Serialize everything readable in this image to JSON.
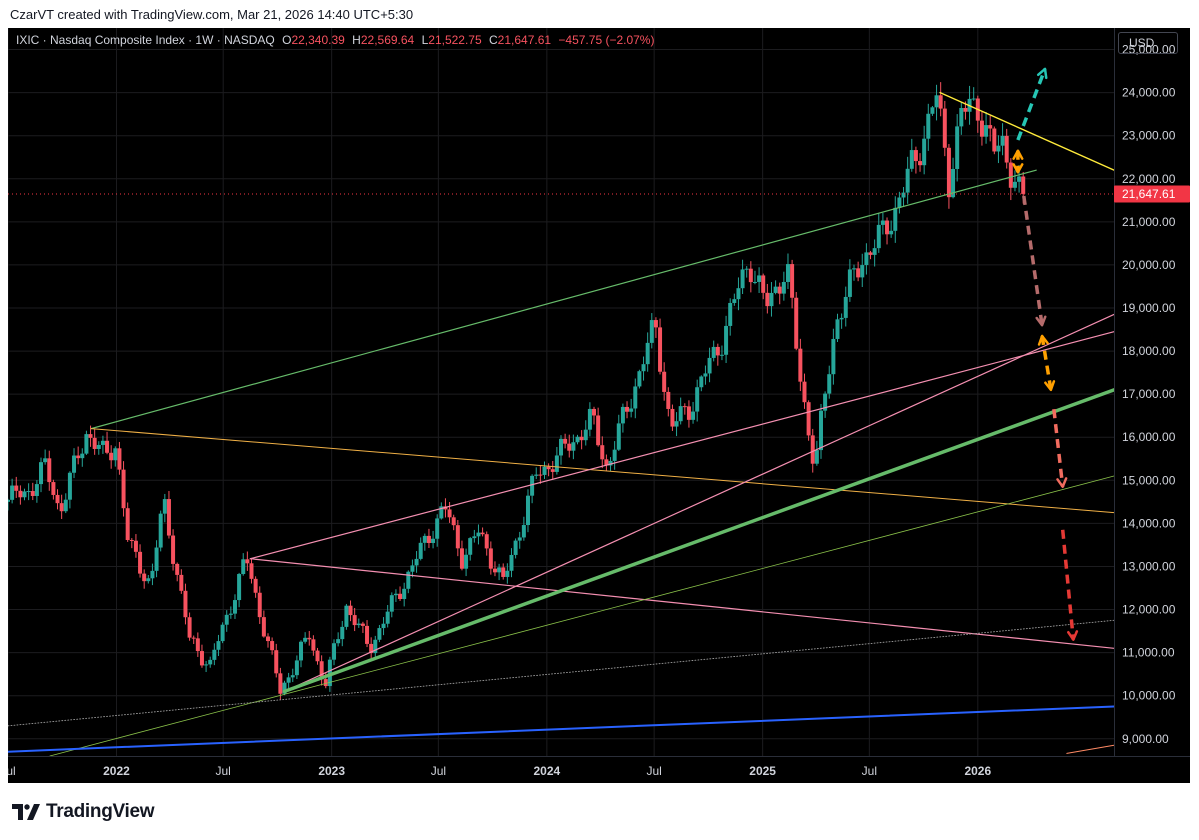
{
  "credit": "CzarVT created with TradingView.com, Mar 21, 2026 14:40 UTC+5:30",
  "legend": {
    "symbol": "IXIC · Nasdaq Composite Index · 1W · NASDAQ",
    "o_label": "O",
    "o_value": "22,340.39",
    "h_label": "H",
    "h_value": "22,569.64",
    "l_label": "L",
    "l_value": "21,522.75",
    "c_label": "C",
    "c_value": "21,647.61",
    "change": "−457.75 (−2.07%)"
  },
  "currency_button": "USD",
  "last_price_label": "21,647.61",
  "brand": "TradingView",
  "colors": {
    "background": "#000000",
    "up": "#26a69a",
    "down": "#f7525f",
    "last_price": "#f23645",
    "channel_green": "#66bb6a",
    "pink": "#f48fb1",
    "orange": "#f0b046",
    "yellow": "#ffeb3b",
    "blue": "#2962ff"
  },
  "chart_data": {
    "type": "candlestick",
    "timeframe": "1W",
    "ylim": [
      8600,
      25500
    ],
    "y_ticks": [
      9000,
      10000,
      11000,
      12000,
      13000,
      14000,
      15000,
      16000,
      17000,
      18000,
      19000,
      20000,
      21000,
      22000,
      23000,
      24000,
      25000
    ],
    "y_tick_labels": [
      "9,000.00",
      "10,000.00",
      "11,000.00",
      "12,000.00",
      "13,000.00",
      "14,000.00",
      "15,000.00",
      "16,000.00",
      "17,000.00",
      "18,000.00",
      "19,000.00",
      "20,000.00",
      "21,000.00",
      "22,000.00",
      "23,000.00",
      "24,000.00",
      "25,000.00"
    ],
    "x_range": [
      "2021-07-01",
      "2026-08-20"
    ],
    "x_ticks": [
      {
        "date": "2021-07-01",
        "label": "Jul"
      },
      {
        "date": "2022-01-01",
        "label": "2022"
      },
      {
        "date": "2022-07-01",
        "label": "Jul"
      },
      {
        "date": "2023-01-01",
        "label": "2023"
      },
      {
        "date": "2023-07-01",
        "label": "Jul"
      },
      {
        "date": "2024-01-01",
        "label": "2024"
      },
      {
        "date": "2024-07-01",
        "label": "Jul"
      },
      {
        "date": "2025-01-01",
        "label": "2025"
      },
      {
        "date": "2025-07-01",
        "label": "Jul"
      },
      {
        "date": "2026-01-01",
        "label": "2026"
      }
    ],
    "path_points": [
      [
        "2021-07-01",
        14500
      ],
      [
        "2021-08-15",
        14800
      ],
      [
        "2021-09-10",
        15300
      ],
      [
        "2021-10-04",
        14300
      ],
      [
        "2021-11-19",
        16150
      ],
      [
        "2021-12-20",
        15500
      ],
      [
        "2022-01-07",
        15900
      ],
      [
        "2022-01-28",
        13500
      ],
      [
        "2022-03-07",
        12600
      ],
      [
        "2022-03-29",
        14500
      ],
      [
        "2022-05-12",
        11300
      ],
      [
        "2022-06-16",
        10700
      ],
      [
        "2022-08-16",
        13180
      ],
      [
        "2022-10-13",
        10100
      ],
      [
        "2022-12-01",
        11400
      ],
      [
        "2022-12-28",
        10250
      ],
      [
        "2023-02-02",
        12100
      ],
      [
        "2023-03-13",
        11100
      ],
      [
        "2023-04-20",
        12100
      ],
      [
        "2023-07-18",
        14400
      ],
      [
        "2023-08-18",
        13200
      ],
      [
        "2023-09-15",
        13800
      ],
      [
        "2023-10-26",
        12600
      ],
      [
        "2023-12-20",
        15100
      ],
      [
        "2024-01-30",
        15600
      ],
      [
        "2024-03-25",
        16400
      ],
      [
        "2024-04-19",
        15300
      ],
      [
        "2024-07-10",
        18600
      ],
      [
        "2024-08-05",
        16200
      ],
      [
        "2024-09-06",
        16700
      ],
      [
        "2024-10-31",
        18300
      ],
      [
        "2024-12-16",
        20150
      ],
      [
        "2025-01-13",
        19000
      ],
      [
        "2025-02-18",
        20000
      ],
      [
        "2025-03-10",
        17600
      ],
      [
        "2025-04-07",
        15300
      ],
      [
        "2025-05-12",
        18700
      ],
      [
        "2025-06-27",
        20200
      ],
      [
        "2025-08-01",
        20700
      ],
      [
        "2025-09-26",
        22500
      ],
      [
        "2025-10-29",
        23950
      ],
      [
        "2025-11-20",
        22000
      ],
      [
        "2025-12-10",
        23500
      ],
      [
        "2026-01-08",
        23700
      ],
      [
        "2026-02-05",
        22600
      ],
      [
        "2026-02-20",
        22800
      ],
      [
        "2026-03-20",
        21647.61
      ]
    ],
    "trendlines": [
      {
        "color": "#66bb6a",
        "width": 1.2,
        "p1": [
          "2021-11-19",
          16200
        ],
        "p2": [
          "2026-04-10",
          22200
        ]
      },
      {
        "color": "#f0b046",
        "width": 1.0,
        "p1": [
          "2021-11-19",
          16200
        ],
        "p2": [
          "2026-08-20",
          14250
        ]
      },
      {
        "color": "#ffeb3b",
        "width": 1.4,
        "p1": [
          "2025-10-29",
          24000
        ],
        "p2": [
          "2026-08-20",
          22200
        ]
      },
      {
        "color": "#f48fb1",
        "width": 1.2,
        "p1": [
          "2022-08-16",
          13180
        ],
        "p2": [
          "2026-08-20",
          18450
        ]
      },
      {
        "color": "#f48fb1",
        "width": 1.2,
        "p1": [
          "2022-08-16",
          13180
        ],
        "p2": [
          "2026-08-20",
          11100
        ]
      },
      {
        "color": "#f48fb1",
        "width": 1.2,
        "p1": [
          "2022-10-13",
          10100
        ],
        "p2": [
          "2026-08-20",
          18850
        ]
      },
      {
        "color": "#66bb6a",
        "width": 3.5,
        "p1": [
          "2022-10-13",
          10100
        ],
        "p2": [
          "2026-08-20",
          17100
        ]
      },
      {
        "color": "#8bc34a",
        "width": 0.8,
        "p1": [
          "2021-09-10",
          8600
        ],
        "p2": [
          "2026-08-20",
          15100
        ]
      },
      {
        "color": "#9e9e9e",
        "width": 0.9,
        "dash": "1,2",
        "p1": [
          "2021-07-01",
          9300
        ],
        "p2": [
          "2026-08-20",
          11750
        ]
      },
      {
        "color": "#2962ff",
        "width": 2.0,
        "p1": [
          "2021-07-01",
          8700
        ],
        "p2": [
          "2026-08-20",
          9750
        ]
      },
      {
        "color": "#ff8a65",
        "width": 1.0,
        "p1": [
          "2026-06-01",
          8660
        ],
        "p2": [
          "2026-08-20",
          8850
        ]
      }
    ],
    "projection_arrows": [
      {
        "color": "#26c6b5",
        "p1": [
          "2026-03-10",
          22900
        ],
        "p2": [
          "2026-04-25",
          24550
        ]
      },
      {
        "color": "#ffa000",
        "p1": [
          "2026-03-10",
          22650
        ],
        "p2": [
          "2026-03-10",
          22150
        ],
        "double": true
      },
      {
        "color": "#b56b6b",
        "p1": [
          "2026-03-20",
          21600
        ],
        "p2": [
          "2026-04-20",
          18600
        ]
      },
      {
        "color": "#ffa000",
        "p1": [
          "2026-04-20",
          18350
        ],
        "p2": [
          "2026-05-05",
          17100
        ],
        "double": true
      },
      {
        "color": "#f26c5f",
        "p1": [
          "2026-05-10",
          16650
        ],
        "p2": [
          "2026-05-25",
          14850
        ]
      },
      {
        "color": "#e53935",
        "p1": [
          "2026-05-25",
          13850
        ],
        "p2": [
          "2026-06-12",
          11300
        ]
      }
    ],
    "last_price": 21647.61
  }
}
